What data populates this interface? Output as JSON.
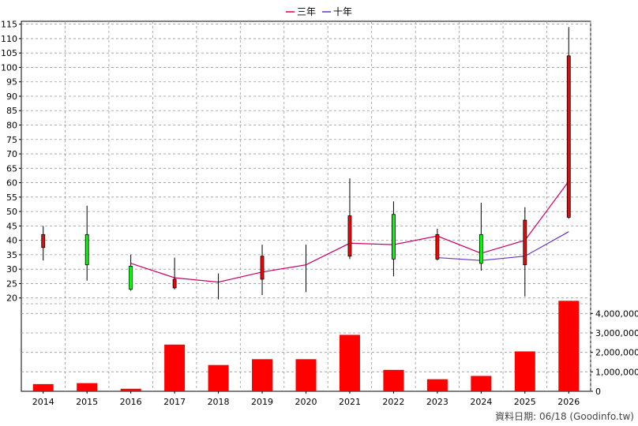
{
  "chart_data": {
    "type": "candlestick+line+bar",
    "legend": [
      {
        "label": "三年",
        "color": "#cc0066"
      },
      {
        "label": "十年",
        "color": "#6633cc"
      }
    ],
    "years": [
      "2014",
      "2015",
      "2016",
      "2017",
      "2018",
      "2019",
      "2020",
      "2021",
      "2022",
      "2023",
      "2024",
      "2025",
      "2026"
    ],
    "price_axis": {
      "min": 18,
      "max": 116,
      "ticks": [
        20,
        25,
        30,
        35,
        40,
        45,
        50,
        55,
        60,
        65,
        70,
        75,
        80,
        85,
        90,
        95,
        100,
        105,
        110,
        115
      ]
    },
    "candles": [
      {
        "year": "2014",
        "open": 37.5,
        "close": 42,
        "high": 45,
        "low": 33,
        "color": "red"
      },
      {
        "year": "2015",
        "open": 42,
        "close": 31.5,
        "high": 52,
        "low": 26,
        "color": "green"
      },
      {
        "year": "2016",
        "open": 31,
        "close": 23,
        "high": 35,
        "low": 22.5,
        "color": "green"
      },
      {
        "year": "2017",
        "open": 23.5,
        "close": 26.5,
        "high": 34,
        "low": 23,
        "color": "red"
      },
      {
        "year": "2018",
        "open": null,
        "close": null,
        "high": 28.5,
        "low": 19.5,
        "color": "line"
      },
      {
        "year": "2019",
        "open": 26.5,
        "close": 34.5,
        "high": 38.5,
        "low": 21,
        "color": "red"
      },
      {
        "year": "2020",
        "open": null,
        "close": null,
        "high": 38.5,
        "low": 22,
        "color": "line"
      },
      {
        "year": "2021",
        "open": 34.5,
        "close": 48.5,
        "high": 61.5,
        "low": 33.5,
        "color": "red"
      },
      {
        "year": "2022",
        "open": 49,
        "close": 33.5,
        "high": 53.5,
        "low": 27.5,
        "color": "green"
      },
      {
        "year": "2023",
        "open": 33.5,
        "close": 42,
        "high": 44,
        "low": 33,
        "color": "red"
      },
      {
        "year": "2024",
        "open": 42,
        "close": 32,
        "high": 53,
        "low": 29.5,
        "color": "green"
      },
      {
        "year": "2025",
        "open": 31.5,
        "close": 47,
        "high": 51.5,
        "low": 20.5,
        "color": "red"
      },
      {
        "year": "2026",
        "open": 48,
        "close": 104,
        "high": 114,
        "low": 47.5,
        "color": "red"
      }
    ],
    "series": [
      {
        "name": "三年",
        "color": "#cc0066",
        "values": [
          null,
          null,
          32,
          27,
          25.5,
          29,
          31.5,
          39,
          38.5,
          41.5,
          35.5,
          40,
          60.5
        ]
      },
      {
        "name": "十年",
        "color": "#6633cc",
        "values": [
          null,
          null,
          null,
          null,
          null,
          null,
          null,
          null,
          null,
          34,
          33,
          34.5,
          43
        ]
      }
    ],
    "volume_axis": {
      "min": 0,
      "max": 4500000,
      "ticks": [
        {
          "value": 0,
          "label": "0"
        },
        {
          "value": 1000000,
          "label": "1,000,000"
        },
        {
          "value": 2000000,
          "label": "2,000,000"
        },
        {
          "value": 3000000,
          "label": "3,000,000"
        },
        {
          "value": 4000000,
          "label": "4,000,000"
        }
      ]
    },
    "volume": [
      370000,
      420000,
      130000,
      2400000,
      1350000,
      1650000,
      1650000,
      2900000,
      1100000,
      620000,
      790000,
      2050000,
      4650000
    ],
    "volume_color": "#ff0000"
  },
  "source_text": "資料日期: 06/18 (Goodinfo.tw)"
}
